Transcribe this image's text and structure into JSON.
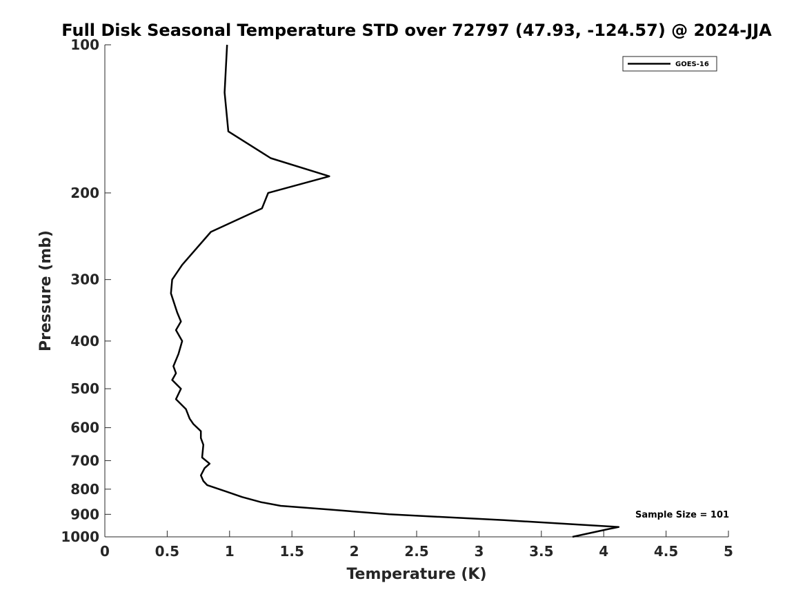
{
  "chart_data": {
    "type": "line",
    "title": "Full Disk Seasonal Temperature STD over 72797 (47.93, -124.57) @ 2024-JJA",
    "xlabel": "Temperature (K)",
    "ylabel": "Pressure (mb)",
    "xlim": [
      0,
      5
    ],
    "ylim": [
      100,
      1000
    ],
    "y_scale": "log",
    "y_reversed": true,
    "x_ticks": [
      "0",
      "0.5",
      "1",
      "1.5",
      "2",
      "2.5",
      "3",
      "3.5",
      "4",
      "4.5",
      "5"
    ],
    "y_ticks": [
      "100",
      "200",
      "300",
      "400",
      "500",
      "600",
      "700",
      "800",
      "900",
      "1000"
    ],
    "grid": false,
    "legend_position": "top-right",
    "series": [
      {
        "name": "GOES-16",
        "color": "#000000",
        "points": [
          [
            0.98,
            100
          ],
          [
            0.96,
            125
          ],
          [
            0.99,
            150
          ],
          [
            1.33,
            170
          ],
          [
            1.8,
            185
          ],
          [
            1.31,
            200
          ],
          [
            1.26,
            215
          ],
          [
            0.85,
            240
          ],
          [
            0.62,
            280
          ],
          [
            0.54,
            300
          ],
          [
            0.53,
            320
          ],
          [
            0.58,
            350
          ],
          [
            0.61,
            365
          ],
          [
            0.57,
            380
          ],
          [
            0.62,
            400
          ],
          [
            0.59,
            425
          ],
          [
            0.55,
            450
          ],
          [
            0.57,
            465
          ],
          [
            0.54,
            480
          ],
          [
            0.61,
            500
          ],
          [
            0.57,
            525
          ],
          [
            0.65,
            550
          ],
          [
            0.68,
            575
          ],
          [
            0.71,
            590
          ],
          [
            0.77,
            610
          ],
          [
            0.77,
            630
          ],
          [
            0.79,
            650
          ],
          [
            0.78,
            690
          ],
          [
            0.84,
            710
          ],
          [
            0.8,
            725
          ],
          [
            0.77,
            750
          ],
          [
            0.79,
            770
          ],
          [
            0.82,
            785
          ],
          [
            0.98,
            810
          ],
          [
            1.1,
            830
          ],
          [
            1.25,
            850
          ],
          [
            1.41,
            865
          ],
          [
            1.8,
            880
          ],
          [
            2.28,
            900
          ],
          [
            3.2,
            925
          ],
          [
            4.12,
            955
          ],
          [
            4.03,
            965
          ],
          [
            3.75,
            1000
          ]
        ]
      }
    ],
    "annotations": [
      "Sample Size = 101"
    ]
  }
}
